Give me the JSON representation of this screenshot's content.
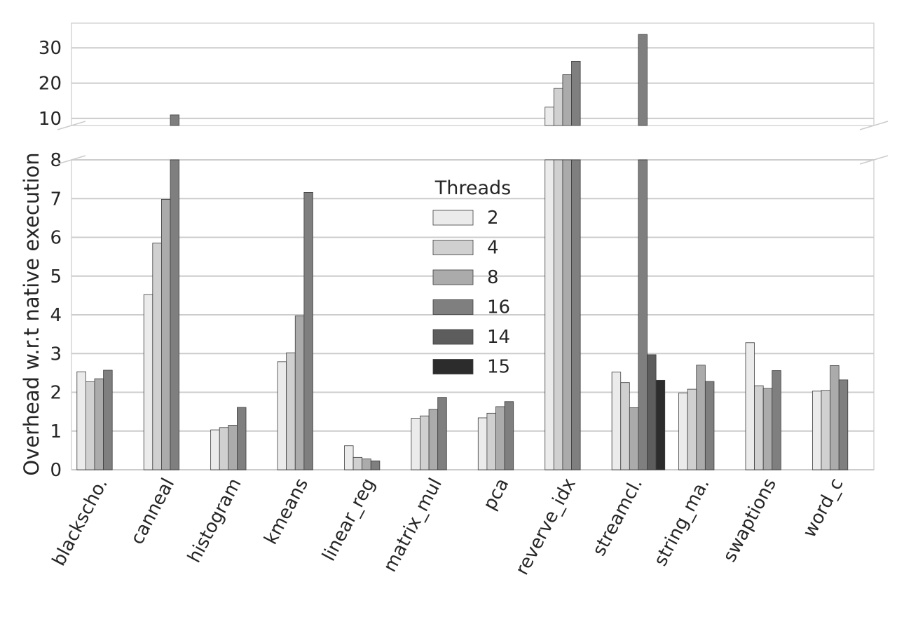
{
  "chart_data": {
    "type": "bar",
    "ylabel": "Overhead w.r.t native execution",
    "y_axis_break": {
      "lower_range": [
        0,
        8
      ],
      "upper_range": [
        8,
        37
      ]
    },
    "lower_ticks": [
      "0",
      "1",
      "2",
      "3",
      "4",
      "5",
      "6",
      "7",
      "8"
    ],
    "upper_ticks": [
      "10",
      "20",
      "30"
    ],
    "grid": true,
    "legend": {
      "title": "Threads",
      "placement": "center"
    },
    "categories": [
      "blackscho.",
      "canneal",
      "histogram",
      "kmeans",
      "linear_reg",
      "matrix_mul",
      "pca",
      "reverve_idx",
      "streamcl.",
      "string_ma.",
      "swaptions",
      "word_c"
    ],
    "series": [
      {
        "name": "2",
        "color": "#ebebeb",
        "values": [
          2.53,
          4.52,
          1.03,
          2.79,
          0.62,
          1.33,
          1.34,
          13.2,
          2.52,
          1.98,
          3.28,
          2.03
        ]
      },
      {
        "name": "4",
        "color": "#d0d0d0",
        "values": [
          2.27,
          5.85,
          1.09,
          3.02,
          0.32,
          1.39,
          1.46,
          18.5,
          2.25,
          2.08,
          2.17,
          2.05
        ]
      },
      {
        "name": "8",
        "color": "#ababab",
        "values": [
          2.35,
          6.98,
          1.15,
          3.97,
          0.28,
          1.56,
          1.63,
          22.4,
          1.6,
          2.7,
          2.1,
          2.69
        ]
      },
      {
        "name": "16",
        "color": "#7f7f7f",
        "values": [
          2.57,
          11.0,
          1.61,
          7.16,
          0.23,
          1.87,
          1.76,
          26.2,
          33.8,
          2.28,
          2.56,
          2.32
        ]
      },
      {
        "name": "14",
        "color": "#5d5d5d",
        "values": [
          null,
          null,
          null,
          null,
          null,
          null,
          null,
          null,
          2.97,
          null,
          null,
          null
        ]
      },
      {
        "name": "15",
        "color": "#2c2c2c",
        "values": [
          null,
          null,
          null,
          null,
          null,
          null,
          null,
          null,
          2.31,
          null,
          null,
          null
        ]
      }
    ]
  }
}
